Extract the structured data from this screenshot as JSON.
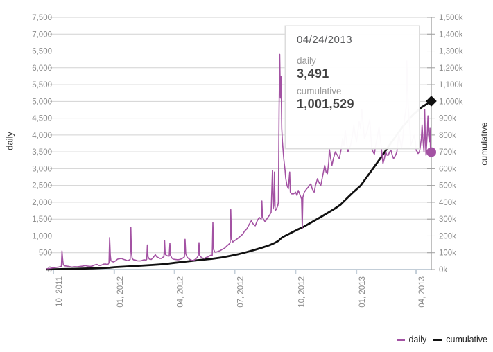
{
  "tooltip": {
    "date": "04/24/2013",
    "daily_label": "daily",
    "daily_value": "3,491",
    "cumulative_label": "cumulative",
    "cumulative_value": "1,001,529"
  },
  "legend": {
    "items": [
      {
        "label": "daily",
        "color": "#a352a3"
      },
      {
        "label": "cumulative",
        "color": "#111111"
      }
    ]
  },
  "colors": {
    "daily_line": "#a352a3",
    "cumulative_line": "#111111",
    "gridline": "#d2d2d2",
    "x_axis": "#c3ced8",
    "right_axis": "#9d9d9d",
    "tick_text": "#8c8c8c"
  },
  "chart_data": {
    "type": "line",
    "title": "",
    "x_axis_label": "",
    "left_axis_title": "daily",
    "right_axis_title": "cumulative",
    "left_ylim": [
      0,
      7500
    ],
    "right_ylim": [
      0,
      1500000
    ],
    "left_tick_labels": [
      "0",
      "500",
      "1,000",
      "1,500",
      "2,000",
      "2,500",
      "3,000",
      "3,500",
      "4,000",
      "4,500",
      "5,000",
      "5,500",
      "6,000",
      "6,500",
      "7,000",
      "7,500"
    ],
    "right_tick_labels": [
      "0k",
      "100k",
      "200k",
      "300k",
      "400k",
      "500k",
      "600k",
      "700k",
      "800k",
      "900k",
      "1,000k",
      "1,100k",
      "1,200k",
      "1,300k",
      "1,400k",
      "1,500k"
    ],
    "x_ticks": [
      {
        "label": "10, 2011",
        "day": 0
      },
      {
        "label": "01, 2012",
        "day": 92
      },
      {
        "label": "04, 2012",
        "day": 183
      },
      {
        "label": "07, 2012",
        "day": 274
      },
      {
        "label": "10, 2012",
        "day": 366
      },
      {
        "label": "01, 2013",
        "day": 458
      },
      {
        "label": "04, 2013",
        "day": 548
      }
    ],
    "x_day0_date": "10/01/2011",
    "hover_point": {
      "day": 571,
      "date": "04/24/2013",
      "daily": 3491,
      "cumulative": 1001529
    },
    "grid": true,
    "legend_position": "bottom-right",
    "series": [
      {
        "name": "daily",
        "axis": "left",
        "points": [
          [
            -10,
            25
          ],
          [
            -5,
            35
          ],
          [
            3,
            60
          ],
          [
            8,
            75
          ],
          [
            11,
            90
          ],
          [
            12,
            80
          ],
          [
            13,
            555
          ],
          [
            14,
            300
          ],
          [
            15,
            140
          ],
          [
            17,
            110
          ],
          [
            20,
            100
          ],
          [
            24,
            90
          ],
          [
            28,
            75
          ],
          [
            32,
            85
          ],
          [
            36,
            80
          ],
          [
            40,
            90
          ],
          [
            44,
            100
          ],
          [
            48,
            120
          ],
          [
            52,
            100
          ],
          [
            56,
            95
          ],
          [
            59,
            105
          ],
          [
            63,
            140
          ],
          [
            66,
            150
          ],
          [
            69,
            120
          ],
          [
            72,
            125
          ],
          [
            76,
            160
          ],
          [
            79,
            165
          ],
          [
            82,
            140
          ],
          [
            84,
            200
          ],
          [
            85,
            950
          ],
          [
            86,
            420
          ],
          [
            87,
            260
          ],
          [
            89,
            235
          ],
          [
            91,
            225
          ],
          [
            94,
            260
          ],
          [
            97,
            310
          ],
          [
            100,
            320
          ],
          [
            103,
            330
          ],
          [
            106,
            300
          ],
          [
            108,
            290
          ],
          [
            111,
            270
          ],
          [
            113,
            265
          ],
          [
            116,
            300
          ],
          [
            117,
            1260
          ],
          [
            118,
            500
          ],
          [
            119,
            330
          ],
          [
            121,
            290
          ],
          [
            124,
            280
          ],
          [
            127,
            260
          ],
          [
            131,
            255
          ],
          [
            134,
            270
          ],
          [
            137,
            290
          ],
          [
            140,
            280
          ],
          [
            141,
            300
          ],
          [
            142,
            730
          ],
          [
            143,
            380
          ],
          [
            145,
            310
          ],
          [
            148,
            300
          ],
          [
            151,
            360
          ],
          [
            154,
            440
          ],
          [
            156,
            380
          ],
          [
            159,
            350
          ],
          [
            161,
            330
          ],
          [
            163,
            330
          ],
          [
            166,
            370
          ],
          [
            167,
            380
          ],
          [
            168,
            860
          ],
          [
            169,
            450
          ],
          [
            171,
            420
          ],
          [
            173,
            400
          ],
          [
            175,
            400
          ],
          [
            176,
            780
          ],
          [
            177,
            420
          ],
          [
            179,
            340
          ],
          [
            181,
            310
          ],
          [
            184,
            300
          ],
          [
            188,
            290
          ],
          [
            191,
            300
          ],
          [
            194,
            320
          ],
          [
            197,
            360
          ],
          [
            198,
            380
          ],
          [
            199,
            900
          ],
          [
            200,
            470
          ],
          [
            202,
            370
          ],
          [
            204,
            330
          ],
          [
            207,
            290
          ],
          [
            211,
            260
          ],
          [
            214,
            300
          ],
          [
            217,
            350
          ],
          [
            219,
            420
          ],
          [
            220,
            800
          ],
          [
            221,
            420
          ],
          [
            224,
            350
          ],
          [
            228,
            330
          ],
          [
            231,
            360
          ],
          [
            234,
            380
          ],
          [
            237,
            420
          ],
          [
            240,
            420
          ],
          [
            241,
            1400
          ],
          [
            242,
            600
          ],
          [
            244,
            520
          ],
          [
            246,
            520
          ],
          [
            249,
            540
          ],
          [
            252,
            560
          ],
          [
            255,
            600
          ],
          [
            259,
            640
          ],
          [
            262,
            700
          ],
          [
            265,
            750
          ],
          [
            267,
            800
          ],
          [
            268,
            1780
          ],
          [
            269,
            900
          ],
          [
            271,
            820
          ],
          [
            273,
            850
          ],
          [
            277,
            900
          ],
          [
            280,
            950
          ],
          [
            283,
            1000
          ],
          [
            286,
            1050
          ],
          [
            289,
            1150
          ],
          [
            292,
            1200
          ],
          [
            296,
            1350
          ],
          [
            299,
            1450
          ],
          [
            302,
            1350
          ],
          [
            305,
            1300
          ],
          [
            308,
            1450
          ],
          [
            311,
            1550
          ],
          [
            314,
            1500
          ],
          [
            315,
            2040
          ],
          [
            316,
            1550
          ],
          [
            318,
            1480
          ],
          [
            320,
            1420
          ],
          [
            323,
            1520
          ],
          [
            326,
            1600
          ],
          [
            329,
            1700
          ],
          [
            331,
            2950
          ],
          [
            332,
            1800
          ],
          [
            333,
            1900
          ],
          [
            334,
            2900
          ],
          [
            335,
            1750
          ],
          [
            337,
            1800
          ],
          [
            339,
            1900
          ],
          [
            340,
            2000
          ],
          [
            341,
            4800
          ],
          [
            342,
            6400
          ],
          [
            343,
            5100
          ],
          [
            344,
            5750
          ],
          [
            345,
            4200
          ],
          [
            346,
            3800
          ],
          [
            348,
            3300
          ],
          [
            350,
            2950
          ],
          [
            351,
            2720
          ],
          [
            353,
            2500
          ],
          [
            355,
            2400
          ],
          [
            357,
            2900
          ],
          [
            358,
            2300
          ],
          [
            360,
            2250
          ],
          [
            363,
            2250
          ],
          [
            366,
            2300
          ],
          [
            368,
            2200
          ],
          [
            370,
            2350
          ],
          [
            372,
            2250
          ],
          [
            375,
            2100
          ],
          [
            376,
            1215
          ],
          [
            377,
            2150
          ],
          [
            379,
            2300
          ],
          [
            382,
            2380
          ],
          [
            385,
            2450
          ],
          [
            389,
            2550
          ],
          [
            391,
            2400
          ],
          [
            394,
            2300
          ],
          [
            396,
            2500
          ],
          [
            399,
            2700
          ],
          [
            401,
            2600
          ],
          [
            404,
            2500
          ],
          [
            407,
            2800
          ],
          [
            410,
            3100
          ],
          [
            412,
            2900
          ],
          [
            414,
            2850
          ],
          [
            416,
            3200
          ],
          [
            417,
            3600
          ],
          [
            419,
            3300
          ],
          [
            421,
            3100
          ],
          [
            423,
            3300
          ],
          [
            426,
            3500
          ],
          [
            429,
            3400
          ],
          [
            432,
            3300
          ],
          [
            435,
            3600
          ],
          [
            437,
            3900
          ],
          [
            439,
            3700
          ],
          [
            441,
            4140
          ],
          [
            443,
            3800
          ],
          [
            445,
            3500
          ],
          [
            447,
            3600
          ],
          [
            449,
            3700
          ],
          [
            452,
            4000
          ],
          [
            454,
            4300
          ],
          [
            456,
            4000
          ],
          [
            458,
            3800
          ],
          [
            460,
            4100
          ],
          [
            462,
            4400
          ],
          [
            464,
            4200
          ],
          [
            466,
            4760
          ],
          [
            468,
            4300
          ],
          [
            470,
            3900
          ],
          [
            473,
            4050
          ],
          [
            475,
            4200
          ],
          [
            478,
            4450
          ],
          [
            481,
            3600
          ],
          [
            483,
            3500
          ],
          [
            485,
            3430
          ],
          [
            487,
            3700
          ],
          [
            489,
            3900
          ],
          [
            492,
            4240
          ],
          [
            495,
            3700
          ],
          [
            498,
            3150
          ],
          [
            500,
            3300
          ],
          [
            502,
            3500
          ],
          [
            504,
            3400
          ],
          [
            506,
            3400
          ],
          [
            508,
            3500
          ],
          [
            510,
            3550
          ],
          [
            512,
            3400
          ],
          [
            514,
            3300
          ],
          [
            517,
            3400
          ],
          [
            519,
            3500
          ],
          [
            522,
            4040
          ],
          [
            524,
            3800
          ],
          [
            526,
            3600
          ],
          [
            528,
            3900
          ],
          [
            530,
            4400
          ],
          [
            533,
            4800
          ],
          [
            534,
            6200
          ],
          [
            535,
            5500
          ],
          [
            536,
            4900
          ],
          [
            537,
            4600
          ],
          [
            539,
            4100
          ],
          [
            540,
            3700
          ],
          [
            542,
            3800
          ],
          [
            545,
            4000
          ],
          [
            547,
            3800
          ],
          [
            548,
            3550
          ],
          [
            550,
            3500
          ],
          [
            551,
            3450
          ],
          [
            553,
            3500
          ],
          [
            554,
            3600
          ],
          [
            556,
            3900
          ],
          [
            557,
            4300
          ],
          [
            559,
            3700
          ],
          [
            560,
            3500
          ],
          [
            561,
            4760
          ],
          [
            562,
            3900
          ],
          [
            563,
            3400
          ],
          [
            565,
            4100
          ],
          [
            566,
            4570
          ],
          [
            567,
            4000
          ],
          [
            568,
            3800
          ],
          [
            569,
            4200
          ],
          [
            570,
            3350
          ],
          [
            571,
            3491
          ]
        ]
      },
      {
        "name": "cumulative",
        "axis": "right",
        "points_k": [
          [
            -10,
            0.5
          ],
          [
            0,
            1.5
          ],
          [
            30,
            4
          ],
          [
            60,
            7
          ],
          [
            85,
            11
          ],
          [
            92,
            14
          ],
          [
            120,
            20
          ],
          [
            150,
            27
          ],
          [
            168,
            32
          ],
          [
            183,
            40
          ],
          [
            199,
            47
          ],
          [
            215,
            54
          ],
          [
            240,
            64
          ],
          [
            255,
            72
          ],
          [
            268,
            82
          ],
          [
            280,
            92
          ],
          [
            292,
            104
          ],
          [
            305,
            118
          ],
          [
            315,
            130
          ],
          [
            326,
            144
          ],
          [
            331,
            152
          ],
          [
            335,
            160
          ],
          [
            340,
            170
          ],
          [
            343,
            182
          ],
          [
            346,
            192
          ],
          [
            352,
            204
          ],
          [
            360,
            220
          ],
          [
            368,
            236
          ],
          [
            376,
            250
          ],
          [
            385,
            270
          ],
          [
            395,
            292
          ],
          [
            405,
            315
          ],
          [
            415,
            338
          ],
          [
            425,
            362
          ],
          [
            434,
            386
          ],
          [
            443,
            421
          ],
          [
            453,
            460
          ],
          [
            464,
            498
          ],
          [
            480,
            585
          ],
          [
            495,
            667
          ],
          [
            511,
            758
          ],
          [
            527,
            845
          ],
          [
            543,
            919
          ],
          [
            556,
            964
          ],
          [
            571,
            1001.529
          ]
        ]
      }
    ]
  }
}
